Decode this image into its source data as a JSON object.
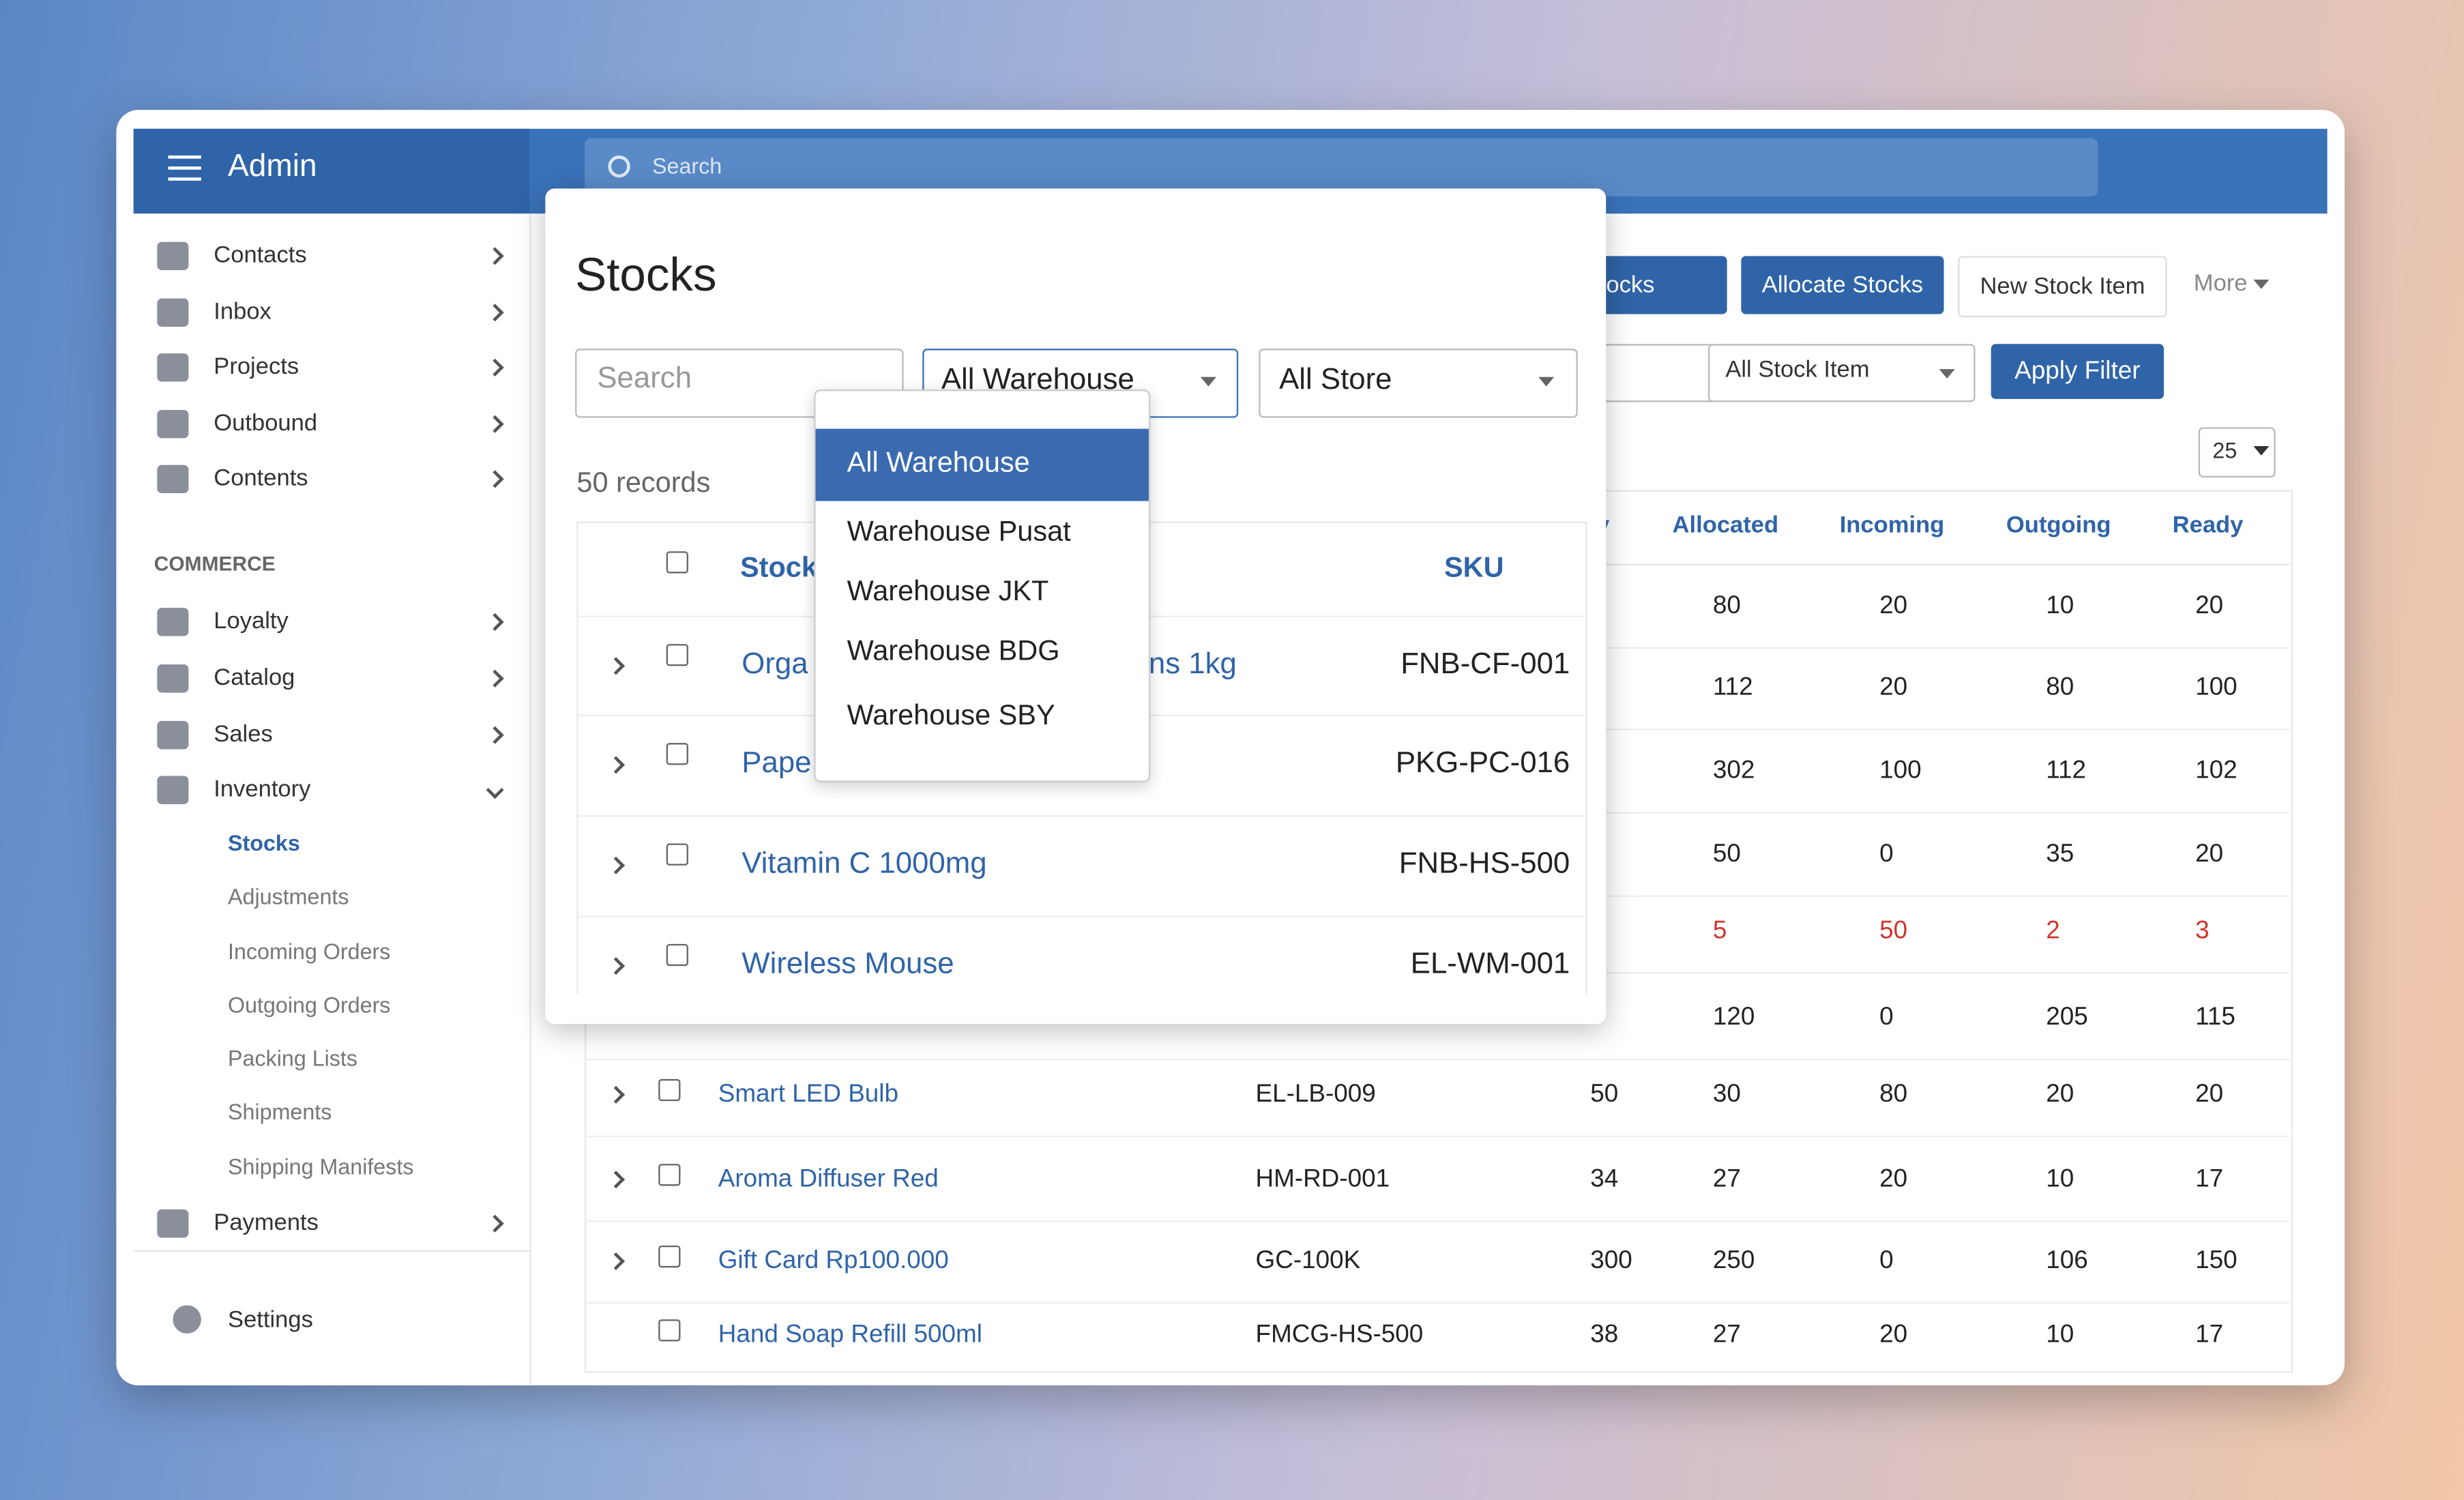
{
  "header": {
    "brand": "Admin",
    "search_placeholder": "Search"
  },
  "sidebar": {
    "main": [
      "Contacts",
      "Inbox",
      "Projects",
      "Outbound",
      "Contents"
    ],
    "section": "COMMERCE",
    "commerce": [
      "Loyalty",
      "Catalog",
      "Sales",
      "Inventory"
    ],
    "inventory_sub": [
      "Stocks",
      "Adjustments",
      "Incoming Orders",
      "Outgoing Orders",
      "Packing Lists",
      "Shipments",
      "Shipping Manifests"
    ],
    "payments": "Payments",
    "settings": "Settings"
  },
  "toolbar": {
    "buttons": [
      "st Stocks",
      "Allocate Stocks",
      "New Stock Item"
    ],
    "more": "More"
  },
  "filters": {
    "stock_item": "All Stock Item",
    "apply": "Apply Filter",
    "page_size": "25"
  },
  "table": {
    "columns": [
      "y",
      "Allocated",
      "Incoming",
      "Outgoing",
      "Ready"
    ],
    "rows": [
      {
        "allocated": 80,
        "incoming": 20,
        "outgoing": 10,
        "ready": 20
      },
      {
        "allocated": 112,
        "incoming": 20,
        "outgoing": 80,
        "ready": 100
      },
      {
        "allocated": 302,
        "incoming": 100,
        "outgoing": 112,
        "ready": 102
      },
      {
        "allocated": 50,
        "incoming": 0,
        "outgoing": 35,
        "ready": 20
      },
      {
        "allocated": 5,
        "incoming": 50,
        "outgoing": 2,
        "ready": 3,
        "low": true
      },
      {
        "allocated": 120,
        "incoming": 0,
        "outgoing": 205,
        "ready": 115
      },
      {
        "name": "Smart LED Bulb",
        "sku": "EL-LB-009",
        "qty": 50,
        "allocated": 30,
        "incoming": 80,
        "outgoing": 20,
        "ready": 20
      },
      {
        "name": "Aroma Diffuser Red",
        "sku": "HM-RD-001",
        "qty": 34,
        "allocated": 27,
        "incoming": 20,
        "outgoing": 10,
        "ready": 17
      },
      {
        "name": "Gift Card Rp100.000",
        "sku": "GC-100K",
        "qty": 300,
        "allocated": 250,
        "incoming": 0,
        "outgoing": 106,
        "ready": 150
      },
      {
        "name": "Hand Soap Refill 500ml",
        "sku": "FMCG-HS-500",
        "qty": 38,
        "allocated": 27,
        "incoming": 20,
        "outgoing": 10,
        "ready": 17,
        "no_expand": true
      }
    ]
  },
  "modal": {
    "title": "Stocks",
    "search_placeholder": "Search",
    "warehouse": "All Warehouse",
    "store": "All Store",
    "records": "50 records",
    "columns": [
      "Stock",
      "SKU"
    ],
    "rows": [
      {
        "name": "Orga",
        "name_tail": "ns 1kg",
        "sku": "FNB-CF-001"
      },
      {
        "name": "Pape",
        "sku": "PKG-PC-016"
      },
      {
        "name": "Vitamin C 1000mg",
        "sku": "FNB-HS-500"
      },
      {
        "name": "Wireless Mouse",
        "sku": "EL-WM-001"
      }
    ],
    "dropdown": {
      "options": [
        "All Warehouse",
        "Warehouse Pusat",
        "Warehouse JKT",
        "Warehouse BDG",
        "Warehouse SBY"
      ],
      "selected": 0
    }
  }
}
